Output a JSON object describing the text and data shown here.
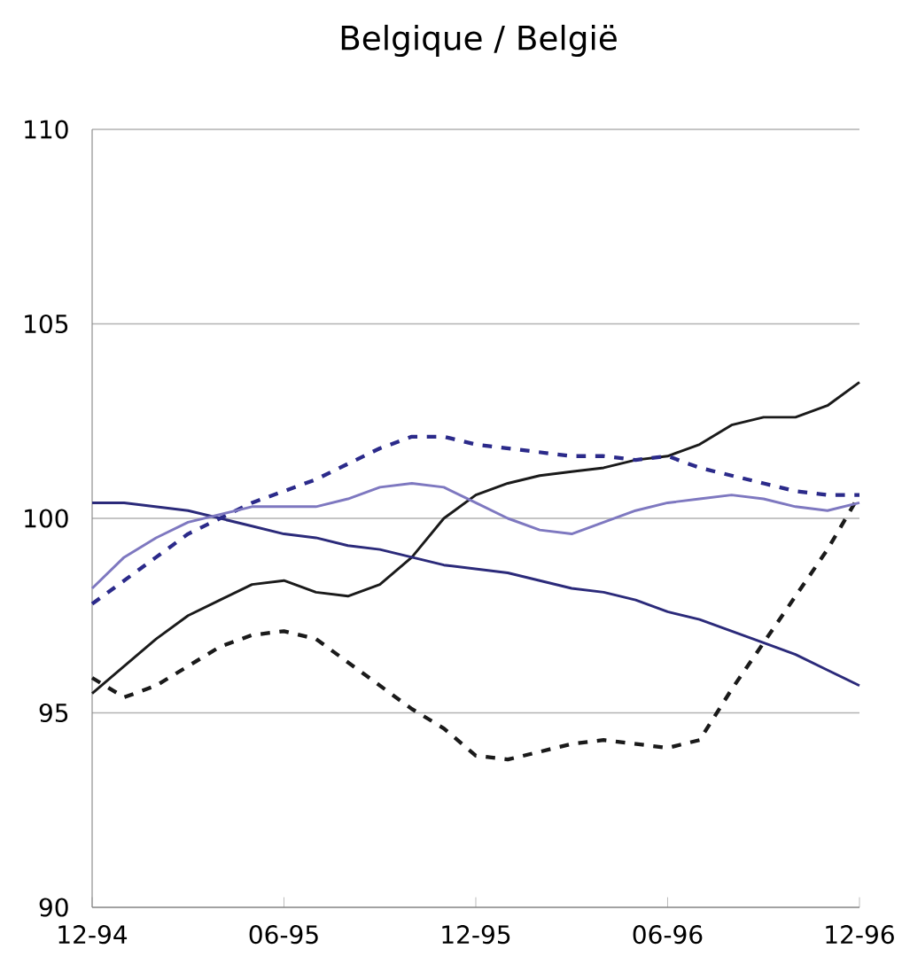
{
  "chart_data": {
    "type": "line",
    "title": "Belgique / België",
    "categories": [
      "12-94",
      null,
      null,
      null,
      null,
      null,
      "06-95",
      null,
      null,
      null,
      null,
      null,
      "12-95",
      null,
      null,
      null,
      null,
      null,
      "06-96",
      null,
      null,
      null,
      null,
      null,
      "12-96"
    ],
    "ylim": [
      90,
      110
    ],
    "yticks": [
      90,
      95,
      100,
      105,
      110
    ],
    "grid": "y",
    "marker": "none",
    "series": [
      {
        "color": "#1a1a1a",
        "line_style": "solid",
        "values": [
          95.5,
          96.2,
          96.9,
          97.5,
          97.9,
          98.3,
          98.4,
          98.1,
          98.0,
          98.3,
          99.0,
          100.0,
          100.6,
          100.9,
          101.1,
          101.2,
          101.3,
          101.5,
          101.6,
          101.9,
          102.4,
          102.6,
          102.6,
          102.9,
          103.5
        ]
      },
      {
        "color": "#1a1a1a",
        "line_style": "dashed",
        "values": [
          95.9,
          95.4,
          95.7,
          96.2,
          96.7,
          97.0,
          97.1,
          96.9,
          96.3,
          95.7,
          95.1,
          94.6,
          93.9,
          93.8,
          94.0,
          94.2,
          94.3,
          94.2,
          94.1,
          94.3,
          95.6,
          96.8,
          98.0,
          99.2,
          100.6
        ]
      },
      {
        "color": "#2b2a7a",
        "line_style": "solid",
        "values": [
          100.4,
          100.4,
          100.3,
          100.2,
          100.0,
          99.8,
          99.6,
          99.5,
          99.3,
          99.2,
          99.0,
          98.8,
          98.7,
          98.6,
          98.4,
          98.2,
          98.1,
          97.9,
          97.6,
          97.4,
          97.1,
          96.8,
          96.5,
          96.1,
          95.7
        ]
      },
      {
        "color": "#2b2a8a",
        "line_style": "dashed",
        "values": [
          97.8,
          98.4,
          99.0,
          99.6,
          100.0,
          100.4,
          100.7,
          101.0,
          101.4,
          101.8,
          102.1,
          102.1,
          101.9,
          101.8,
          101.7,
          101.6,
          101.6,
          101.5,
          101.6,
          101.3,
          101.1,
          100.9,
          100.7,
          100.6,
          100.6
        ]
      },
      {
        "color": "#7e78c0",
        "line_style": "solid",
        "values": [
          98.2,
          99.0,
          99.5,
          99.9,
          100.1,
          100.3,
          100.3,
          100.3,
          100.5,
          100.8,
          100.9,
          100.8,
          100.4,
          100.0,
          99.7,
          99.6,
          99.9,
          100.2,
          100.4,
          100.5,
          100.6,
          100.5,
          100.3,
          100.2,
          100.4
        ]
      }
    ]
  }
}
